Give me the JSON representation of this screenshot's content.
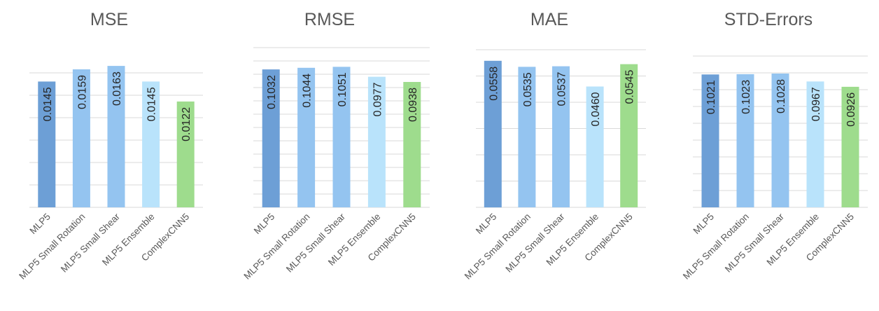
{
  "chart_data": [
    {
      "type": "bar",
      "title": "MSE",
      "categories": [
        "MLP5",
        "MLP5 Small Rotation",
        "MLP5 Small Shear",
        "MLP5 Ensemble",
        "ComplexCNN5"
      ],
      "values": [
        0.0145,
        0.0159,
        0.0163,
        0.0145,
        0.0122
      ],
      "labels": [
        "0.0145",
        "0.0159",
        "0.0163",
        "0.0145",
        "0.0122"
      ],
      "ylim": [
        0,
        0.018
      ],
      "grid": true,
      "legend": "none"
    },
    {
      "type": "bar",
      "title": "RMSE",
      "categories": [
        "MLP5",
        "MLP5 Small Rotation",
        "MLP5 Small Shear",
        "MLP5 Ensemble",
        "ComplexCNN5"
      ],
      "values": [
        0.1032,
        0.1044,
        0.1051,
        0.0977,
        0.0938
      ],
      "labels": [
        "0.1032",
        "0.1044",
        "0.1051",
        "0.0977",
        "0.0938"
      ],
      "ylim": [
        0,
        0.12
      ],
      "grid": true,
      "legend": "none"
    },
    {
      "type": "bar",
      "title": "MAE",
      "categories": [
        "MLP5",
        "MLP5 Small Rotation",
        "MLP5 Small Shear",
        "MLP5 Ensemble",
        "ComplexCNN5"
      ],
      "values": [
        0.0558,
        0.0535,
        0.0537,
        0.046,
        0.0545
      ],
      "labels": [
        "0.0558",
        "0.0535",
        "0.0537",
        "0.0460",
        "0.0545"
      ],
      "ylim": [
        0,
        0.06
      ],
      "grid": true,
      "legend": "none"
    },
    {
      "type": "bar",
      "title": "STD-Errors",
      "categories": [
        "MLP5",
        "MLP5 Small Rotation",
        "MLP5 Small Shear",
        "MLP5 Ensemble",
        "ComplexCNN5"
      ],
      "values": [
        0.1021,
        0.1023,
        0.1028,
        0.0967,
        0.0926
      ],
      "labels": [
        "0.1021",
        "0.1023",
        "0.1028",
        "0.0967",
        "0.0926"
      ],
      "ylim": [
        0,
        0.12
      ],
      "grid": true,
      "legend": "none"
    }
  ],
  "colors": {
    "bars": [
      "#6d9fd6",
      "#94c4f0",
      "#94c4f0",
      "#b9e3fb",
      "#9edc8d"
    ],
    "grid": "#d9d9d9",
    "axis_text": "#595959",
    "title": "#595959",
    "value_text": "#262626"
  }
}
